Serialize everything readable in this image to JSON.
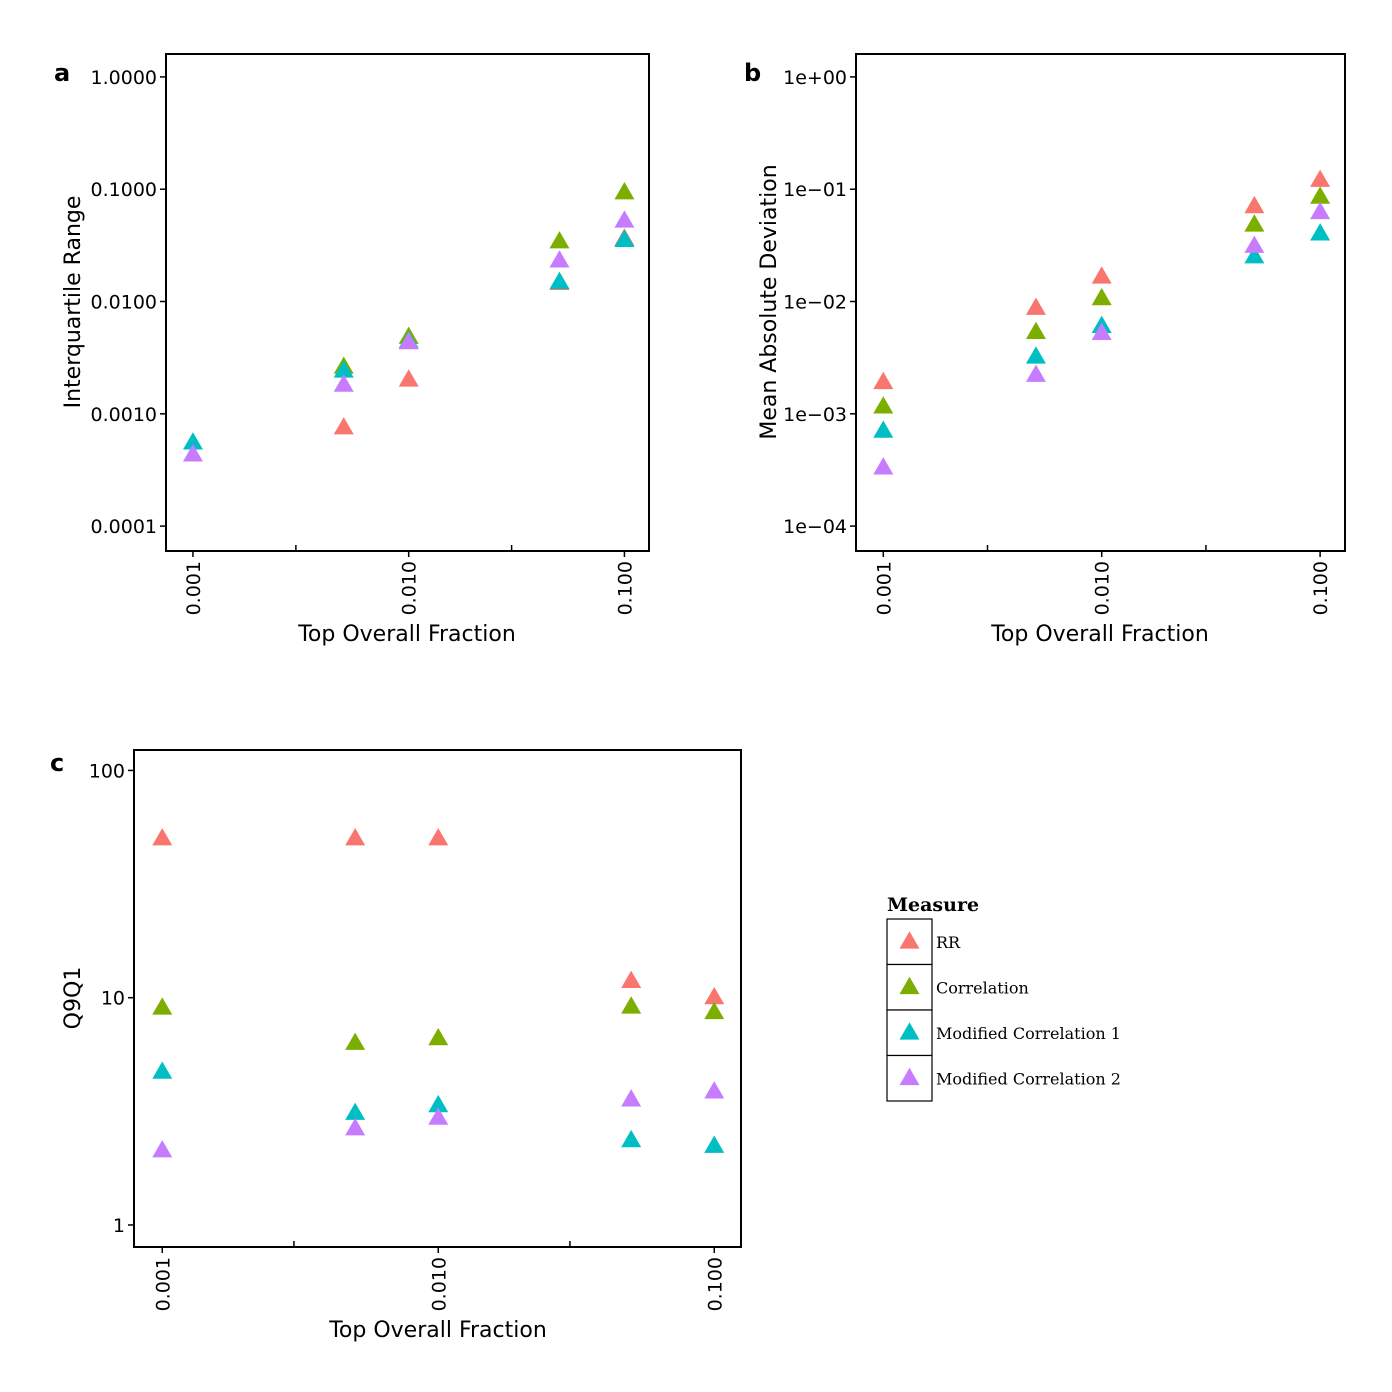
{
  "chart_data": [
    {
      "panel": "a",
      "type": "scatter",
      "title": "",
      "xlabel": "Top Overall Fraction",
      "ylabel": "Interquartile Range",
      "xscale": "log10",
      "yscale": "log10",
      "xlim": [
        0.00075,
        0.13
      ],
      "ylim": [
        6e-05,
        1.6
      ],
      "xticks": [
        0.001,
        0.01,
        0.1
      ],
      "xtick_labels": [
        "0.001",
        "0.010",
        "0.100"
      ],
      "yticks": [
        0.0001,
        0.001,
        0.01,
        0.1,
        1
      ],
      "ytick_labels": [
        "0.0001",
        "0.0010",
        "0.0100",
        "0.1000",
        "1.0000"
      ],
      "x": [
        0.001,
        0.005,
        0.01,
        0.05,
        0.1
      ],
      "series": [
        {
          "name": "RR",
          "values": [
            null,
            0.00075,
            0.002,
            0.0145,
            0.036
          ]
        },
        {
          "name": "Correlation",
          "values": [
            null,
            0.0026,
            0.0048,
            0.034,
            0.093
          ]
        },
        {
          "name": "Modified Correlation 1",
          "values": [
            0.00055,
            0.0024,
            0.0044,
            0.0148,
            0.035
          ]
        },
        {
          "name": "Modified Correlation 2",
          "values": [
            0.00043,
            0.0018,
            0.0043,
            0.023,
            0.052
          ]
        }
      ]
    },
    {
      "panel": "b",
      "type": "scatter",
      "title": "",
      "xlabel": "Top Overall Fraction",
      "ylabel": "Mean Absolute Deviation",
      "xscale": "log10",
      "yscale": "log10",
      "xlim": [
        0.00075,
        0.13
      ],
      "ylim": [
        6e-05,
        1.6
      ],
      "xticks": [
        0.001,
        0.01,
        0.1
      ],
      "xtick_labels": [
        "0.001",
        "0.010",
        "0.100"
      ],
      "yticks": [
        0.0001,
        0.001,
        0.01,
        0.1,
        1
      ],
      "ytick_labels": [
        "1e−04",
        "1e−03",
        "1e−02",
        "1e−01",
        "1e+00"
      ],
      "x": [
        0.001,
        0.005,
        0.01,
        0.05,
        0.1
      ],
      "series": [
        {
          "name": "RR",
          "values": [
            0.0019,
            0.0087,
            0.0165,
            0.07,
            0.12
          ]
        },
        {
          "name": "Correlation",
          "values": [
            0.00115,
            0.0053,
            0.0106,
            0.048,
            0.085
          ]
        },
        {
          "name": "Modified Correlation 1",
          "values": [
            0.0007,
            0.0032,
            0.006,
            0.025,
            0.04
          ]
        },
        {
          "name": "Modified Correlation 2",
          "values": [
            0.00033,
            0.0022,
            0.0052,
            0.031,
            0.062
          ]
        }
      ]
    },
    {
      "panel": "c",
      "type": "scatter",
      "title": "",
      "xlabel": "Top Overall Fraction",
      "ylabel": "Q9Q1",
      "xscale": "log10",
      "yscale": "log10",
      "xlim": [
        0.00079,
        0.125
      ],
      "ylim": [
        0.8,
        123
      ],
      "xticks": [
        0.001,
        0.01,
        0.1
      ],
      "xtick_labels": [
        "0.001",
        "0.010",
        "0.100"
      ],
      "yticks": [
        1,
        10,
        100
      ],
      "ytick_labels": [
        "1",
        "10",
        "100"
      ],
      "x": [
        0.001,
        0.005,
        0.01,
        0.05,
        0.1
      ],
      "series": [
        {
          "name": "RR",
          "values": [
            50,
            50,
            50,
            11.8,
            10
          ]
        },
        {
          "name": "Correlation",
          "values": [
            9,
            6.3,
            6.6,
            9.1,
            8.6
          ]
        },
        {
          "name": "Modified Correlation 1",
          "values": [
            4.7,
            3.1,
            3.35,
            2.35,
            2.22
          ]
        },
        {
          "name": "Modified Correlation 2",
          "values": [
            2.12,
            2.65,
            2.95,
            3.55,
            3.85
          ]
        }
      ]
    }
  ],
  "panels": {
    "a": {
      "letter": "a"
    },
    "b": {
      "letter": "b"
    },
    "c": {
      "letter": "c"
    }
  },
  "legend": {
    "title": "Measure",
    "items": [
      "RR",
      "Correlation",
      "Modified Correlation 1",
      "Modified Correlation 2"
    ]
  },
  "colors": {
    "RR": "#F8766D",
    "Correlation": "#7CAE00",
    "Modified Correlation 1": "#00BFC4",
    "Modified Correlation 2": "#C77CFF"
  }
}
